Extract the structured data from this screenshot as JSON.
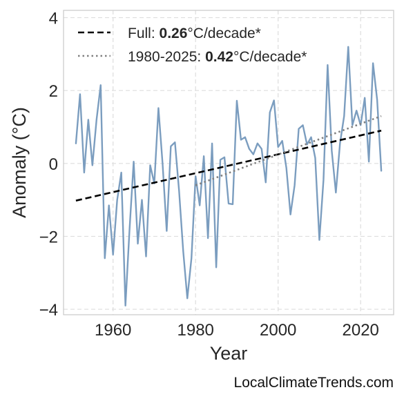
{
  "chart_data": {
    "type": "line",
    "xlabel": "Year",
    "ylabel": "Anomaly (°C)",
    "xlim": [
      1948,
      2028
    ],
    "ylim": [
      -4.15,
      4.2
    ],
    "xticks": [
      1960,
      1980,
      2000,
      2020
    ],
    "yticks": [
      4,
      2,
      0,
      -2,
      -4
    ],
    "ytick_labels": [
      "4",
      "2",
      "0",
      "−2",
      "−4"
    ],
    "grid": true,
    "legend_position": "top-left",
    "series": [
      {
        "style": "solid",
        "color": "#7b9dbf",
        "x": [
          1951,
          1952,
          1953,
          1954,
          1955,
          1956,
          1957,
          1958,
          1959,
          1960,
          1961,
          1962,
          1963,
          1964,
          1965,
          1966,
          1967,
          1968,
          1969,
          1970,
          1971,
          1972,
          1973,
          1974,
          1975,
          1976,
          1977,
          1978,
          1979,
          1980,
          1981,
          1982,
          1983,
          1984,
          1985,
          1986,
          1987,
          1988,
          1989,
          1990,
          1991,
          1992,
          1993,
          1994,
          1995,
          1996,
          1997,
          1998,
          1999,
          2000,
          2001,
          2002,
          2003,
          2004,
          2005,
          2006,
          2007,
          2008,
          2009,
          2010,
          2011,
          2012,
          2013,
          2014,
          2015,
          2016,
          2017,
          2018,
          2019,
          2020,
          2021,
          2022,
          2023,
          2024,
          2025
        ],
        "values": [
          0.55,
          1.9,
          -0.25,
          1.2,
          -0.05,
          1.2,
          2.15,
          -2.6,
          -1.15,
          -2.5,
          -1.0,
          -0.25,
          -3.9,
          -1.8,
          0.05,
          -2.2,
          -1.0,
          -2.55,
          -0.05,
          -0.55,
          1.52,
          0.0,
          -1.85,
          0.47,
          0.58,
          -0.75,
          -2.4,
          -3.7,
          -2.6,
          -0.35,
          -1.15,
          0.2,
          -2.05,
          0.55,
          -2.85,
          0.1,
          0.17,
          -1.1,
          -1.12,
          1.72,
          0.65,
          0.72,
          0.4,
          0.25,
          0.55,
          0.4,
          -0.52,
          1.4,
          1.73,
          0.45,
          0.62,
          -0.12,
          -1.4,
          -0.6,
          0.95,
          1.05,
          0.52,
          0.72,
          0.15,
          -2.1,
          -0.45,
          2.7,
          0.35,
          -0.8,
          0.55,
          1.3,
          3.2,
          1.05,
          1.45,
          1.05,
          1.8,
          0.05,
          2.75,
          1.75,
          -0.2
        ]
      },
      {
        "name": "Full",
        "style": "dashed",
        "color": "#000000",
        "x": [
          1951,
          2025
        ],
        "values": [
          -1.02,
          0.9
        ],
        "trend_value": "0.26",
        "trend_unit": "°C/decade*"
      },
      {
        "name": "1980-2025",
        "style": "dotted",
        "color": "#808080",
        "x": [
          1980,
          2025
        ],
        "values": [
          -0.6,
          1.3
        ],
        "trend_value": "0.42",
        "trend_unit": "°C/decade*"
      }
    ]
  },
  "legend": {
    "full_prefix": "Full: ",
    "full_value": "0.26",
    "full_suffix": "°C/decade*",
    "recent_prefix": "1980-2025: ",
    "recent_value": "0.42",
    "recent_suffix": "°C/decade*"
  },
  "source": "LocalClimateTrends.com"
}
